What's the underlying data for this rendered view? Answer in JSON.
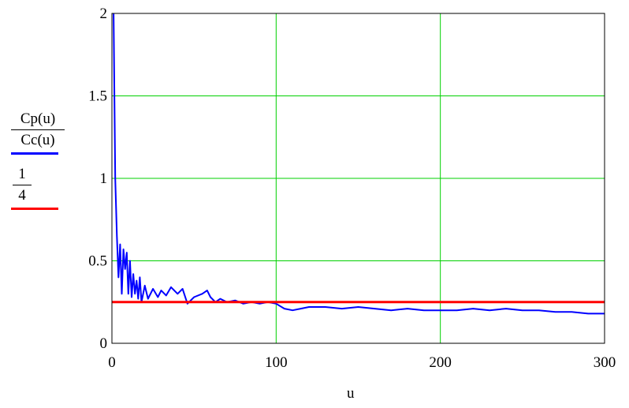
{
  "chart_data": {
    "type": "line",
    "xlabel": "u",
    "xlim": [
      0,
      300
    ],
    "ylim": [
      0,
      2
    ],
    "xticks": [
      "0",
      "100",
      "200",
      "300"
    ],
    "yticks": [
      "0",
      "0.5",
      "1",
      "1.5",
      "2"
    ],
    "grid": true,
    "grid_color": "#00d000",
    "legend_position": "left",
    "series": [
      {
        "name_numerator": "Cp(u)",
        "name_denominator": "Cc(u)",
        "color": "#0000ff",
        "points": [
          [
            1,
            2.0
          ],
          [
            2,
            1.0
          ],
          [
            3,
            0.65
          ],
          [
            4,
            0.4
          ],
          [
            5,
            0.6
          ],
          [
            6,
            0.3
          ],
          [
            7,
            0.57
          ],
          [
            8,
            0.45
          ],
          [
            9,
            0.55
          ],
          [
            10,
            0.3
          ],
          [
            11,
            0.5
          ],
          [
            12,
            0.28
          ],
          [
            13,
            0.42
          ],
          [
            14,
            0.3
          ],
          [
            15,
            0.38
          ],
          [
            16,
            0.27
          ],
          [
            17,
            0.4
          ],
          [
            18,
            0.25
          ],
          [
            20,
            0.35
          ],
          [
            22,
            0.27
          ],
          [
            25,
            0.33
          ],
          [
            28,
            0.28
          ],
          [
            30,
            0.32
          ],
          [
            33,
            0.29
          ],
          [
            36,
            0.34
          ],
          [
            40,
            0.3
          ],
          [
            43,
            0.33
          ],
          [
            46,
            0.24
          ],
          [
            50,
            0.28
          ],
          [
            55,
            0.3
          ],
          [
            58,
            0.32
          ],
          [
            60,
            0.28
          ],
          [
            63,
            0.25
          ],
          [
            66,
            0.27
          ],
          [
            70,
            0.25
          ],
          [
            75,
            0.26
          ],
          [
            80,
            0.24
          ],
          [
            85,
            0.25
          ],
          [
            90,
            0.24
          ],
          [
            95,
            0.25
          ],
          [
            100,
            0.24
          ],
          [
            105,
            0.21
          ],
          [
            110,
            0.2
          ],
          [
            115,
            0.21
          ],
          [
            120,
            0.22
          ],
          [
            130,
            0.22
          ],
          [
            140,
            0.21
          ],
          [
            150,
            0.22
          ],
          [
            160,
            0.21
          ],
          [
            170,
            0.2
          ],
          [
            180,
            0.21
          ],
          [
            190,
            0.2
          ],
          [
            200,
            0.2
          ],
          [
            210,
            0.2
          ],
          [
            220,
            0.21
          ],
          [
            230,
            0.2
          ],
          [
            240,
            0.21
          ],
          [
            250,
            0.2
          ],
          [
            260,
            0.2
          ],
          [
            270,
            0.19
          ],
          [
            280,
            0.19
          ],
          [
            290,
            0.18
          ],
          [
            300,
            0.18
          ]
        ]
      },
      {
        "name_numerator": "1",
        "name_denominator": "4",
        "color": "#ff0000",
        "points": [
          [
            0,
            0.25
          ],
          [
            300,
            0.25
          ]
        ]
      }
    ]
  }
}
